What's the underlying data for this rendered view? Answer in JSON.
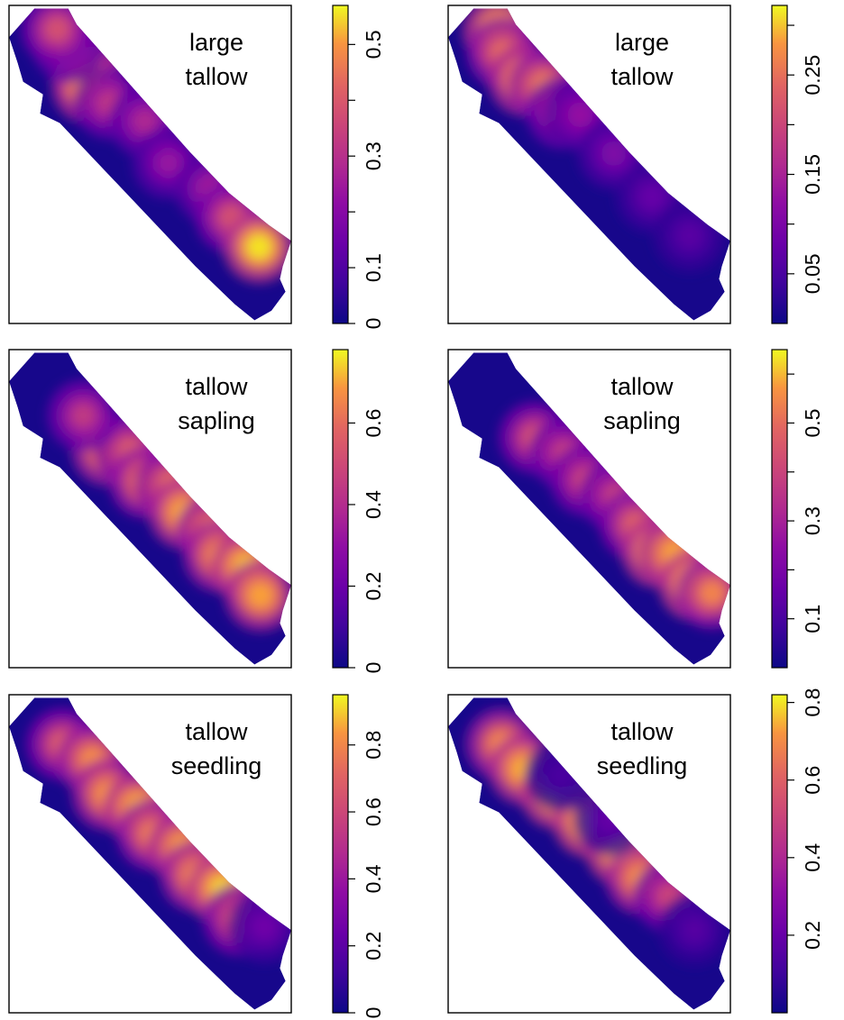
{
  "chart_data": [
    {
      "type": "heatmap",
      "title": [
        "large",
        "tallow"
      ],
      "colorbar": {
        "min": 0,
        "max": 0.57,
        "ticks": [
          0,
          0.1,
          0.3,
          0.5
        ],
        "minor_ticks": [
          0.2,
          0.4
        ],
        "tick_labels": [
          "0",
          "0.1",
          "0.3",
          "0.5"
        ]
      },
      "colormap": "plasma",
      "grid": false,
      "hotspots": [
        {
          "u": 0.18,
          "v": 0.53,
          "value": 0.42
        },
        {
          "u": 0.22,
          "v": 0.28,
          "value": 0.5
        },
        {
          "u": 0.1,
          "v": 0.6,
          "value": 0.22
        },
        {
          "u": 0.3,
          "v": 0.35,
          "value": 0.25
        },
        {
          "u": 0.42,
          "v": 0.6,
          "value": 0.22
        },
        {
          "u": 0.55,
          "v": 0.3,
          "value": 0.18
        },
        {
          "u": 0.7,
          "v": 0.55,
          "value": 0.2
        },
        {
          "u": 0.8,
          "v": 0.4,
          "value": 0.3
        },
        {
          "u": 0.92,
          "v": 0.35,
          "value": 0.55
        },
        {
          "u": 0.04,
          "v": 0.7,
          "value": 0.3
        }
      ]
    },
    {
      "type": "heatmap",
      "title": [
        "large",
        "tallow"
      ],
      "colorbar": {
        "min": 0,
        "max": 0.32,
        "ticks": [
          0.05,
          0.15,
          0.25
        ],
        "minor_ticks": [
          0.1,
          0.2,
          0.3
        ],
        "tick_labels": [
          "0.05",
          "0.15",
          "0.25"
        ]
      },
      "colormap": "plasma",
      "grid": false,
      "hotspots": [
        {
          "u": 0.05,
          "v": 0.7,
          "value": 0.3
        },
        {
          "u": 0.1,
          "v": 0.45,
          "value": 0.2
        },
        {
          "u": 0.2,
          "v": 0.35,
          "value": 0.27
        },
        {
          "u": 0.26,
          "v": 0.55,
          "value": 0.22
        },
        {
          "u": 0.35,
          "v": 0.4,
          "value": 0.14
        },
        {
          "u": 0.4,
          "v": 0.65,
          "value": 0.1
        },
        {
          "u": 0.55,
          "v": 0.55,
          "value": 0.08
        },
        {
          "u": 0.72,
          "v": 0.45,
          "value": 0.06
        },
        {
          "u": 0.88,
          "v": 0.4,
          "value": 0.05
        }
      ]
    },
    {
      "type": "heatmap",
      "title": [
        "tallow",
        "sapling"
      ],
      "colorbar": {
        "min": 0,
        "max": 0.78,
        "ticks": [
          0,
          0.2,
          0.4,
          0.6
        ],
        "minor_ticks": [],
        "tick_labels": [
          "0",
          "0.2",
          "0.4",
          "0.6"
        ]
      },
      "colormap": "plasma",
      "grid": false,
      "hotspots": [
        {
          "u": 0.3,
          "v": 0.28,
          "value": 0.62
        },
        {
          "u": 0.36,
          "v": 0.6,
          "value": 0.45
        },
        {
          "u": 0.45,
          "v": 0.35,
          "value": 0.55
        },
        {
          "u": 0.52,
          "v": 0.7,
          "value": 0.5
        },
        {
          "u": 0.6,
          "v": 0.45,
          "value": 0.68
        },
        {
          "u": 0.7,
          "v": 0.6,
          "value": 0.55
        },
        {
          "u": 0.76,
          "v": 0.3,
          "value": 0.6
        },
        {
          "u": 0.85,
          "v": 0.55,
          "value": 0.72
        },
        {
          "u": 0.93,
          "v": 0.3,
          "value": 0.65
        },
        {
          "u": 0.18,
          "v": 0.45,
          "value": 0.35
        }
      ]
    },
    {
      "type": "heatmap",
      "title": [
        "tallow",
        "sapling"
      ],
      "colorbar": {
        "min": 0,
        "max": 0.65,
        "ticks": [
          0.1,
          0.3,
          0.5
        ],
        "minor_ticks": [
          0.2,
          0.4,
          0.6
        ],
        "tick_labels": [
          "0.1",
          "0.3",
          "0.5"
        ]
      },
      "colormap": "plasma",
      "grid": false,
      "hotspots": [
        {
          "u": 0.25,
          "v": 0.3,
          "value": 0.35
        },
        {
          "u": 0.35,
          "v": 0.5,
          "value": 0.3
        },
        {
          "u": 0.45,
          "v": 0.4,
          "value": 0.32
        },
        {
          "u": 0.55,
          "v": 0.6,
          "value": 0.3
        },
        {
          "u": 0.65,
          "v": 0.45,
          "value": 0.38
        },
        {
          "u": 0.75,
          "v": 0.35,
          "value": 0.6
        },
        {
          "u": 0.8,
          "v": 0.6,
          "value": 0.55
        },
        {
          "u": 0.9,
          "v": 0.4,
          "value": 0.62
        },
        {
          "u": 0.96,
          "v": 0.55,
          "value": 0.45
        }
      ]
    },
    {
      "type": "heatmap",
      "title": [
        "tallow",
        "seedling"
      ],
      "colorbar": {
        "min": 0,
        "max": 0.95,
        "ticks": [
          0,
          0.2,
          0.4,
          0.6,
          0.8
        ],
        "minor_ticks": [],
        "tick_labels": [
          "0",
          "0.2",
          "0.4",
          "0.6",
          "0.8"
        ]
      },
      "colormap": "plasma",
      "grid": false,
      "hotspots": [
        {
          "u": 0.1,
          "v": 0.4,
          "value": 0.55
        },
        {
          "u": 0.2,
          "v": 0.6,
          "value": 0.7
        },
        {
          "u": 0.3,
          "v": 0.3,
          "value": 0.75
        },
        {
          "u": 0.4,
          "v": 0.55,
          "value": 0.85
        },
        {
          "u": 0.48,
          "v": 0.35,
          "value": 0.65
        },
        {
          "u": 0.58,
          "v": 0.6,
          "value": 0.8
        },
        {
          "u": 0.66,
          "v": 0.35,
          "value": 0.72
        },
        {
          "u": 0.75,
          "v": 0.55,
          "value": 0.9
        },
        {
          "u": 0.84,
          "v": 0.3,
          "value": 0.55
        },
        {
          "u": 0.92,
          "v": 0.6,
          "value": 0.2
        }
      ]
    },
    {
      "type": "heatmap",
      "title": [
        "tallow",
        "seedling"
      ],
      "colorbar": {
        "min": 0,
        "max": 0.82,
        "ticks": [
          0.2,
          0.4,
          0.6,
          0.8
        ],
        "minor_ticks": [],
        "tick_labels": [
          "0.2",
          "0.4",
          "0.6",
          "0.8"
        ]
      },
      "colormap": "plasma",
      "grid": false,
      "hotspots": [
        {
          "u": 0.1,
          "v": 0.4,
          "value": 0.6
        },
        {
          "u": 0.2,
          "v": 0.35,
          "value": 0.72
        },
        {
          "u": 0.32,
          "v": 0.45,
          "value": 0.78
        },
        {
          "u": 0.45,
          "v": 0.5,
          "value": 0.82
        },
        {
          "u": 0.58,
          "v": 0.55,
          "value": 0.8
        },
        {
          "u": 0.68,
          "v": 0.4,
          "value": 0.65
        },
        {
          "u": 0.78,
          "v": 0.55,
          "value": 0.4
        },
        {
          "u": 0.9,
          "v": 0.4,
          "value": 0.12
        },
        {
          "u": 0.3,
          "v": 0.8,
          "value": 0.1
        },
        {
          "u": 0.5,
          "v": 0.85,
          "value": 0.15
        }
      ]
    }
  ]
}
